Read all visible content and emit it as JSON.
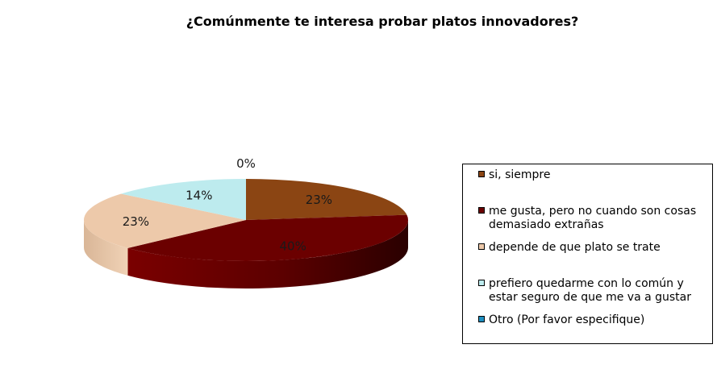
{
  "chart_data": {
    "type": "pie",
    "title": "¿Comúnmente te interesa probar platos innovadores?",
    "legend_position": "right",
    "slices": [
      {
        "label": "si, siempre",
        "value": 23,
        "display": "23%",
        "color": "#8B4513"
      },
      {
        "label": "me gusta, pero no cuando son cosas demasiado extrañas",
        "value": 40,
        "display": "40%",
        "color": "#6B0000"
      },
      {
        "label": "depende de que plato se trate",
        "value": 23,
        "display": "23%",
        "color": "#EDC9AA"
      },
      {
        "label": "prefiero quedarme con lo común y estar seguro de que me va a gustar",
        "value": 14,
        "display": "14%",
        "color": "#BDEBEE"
      },
      {
        "label": "Otro (Por favor especifique)",
        "value": 0,
        "display": "0%",
        "color": "#1E8FC0"
      }
    ]
  }
}
